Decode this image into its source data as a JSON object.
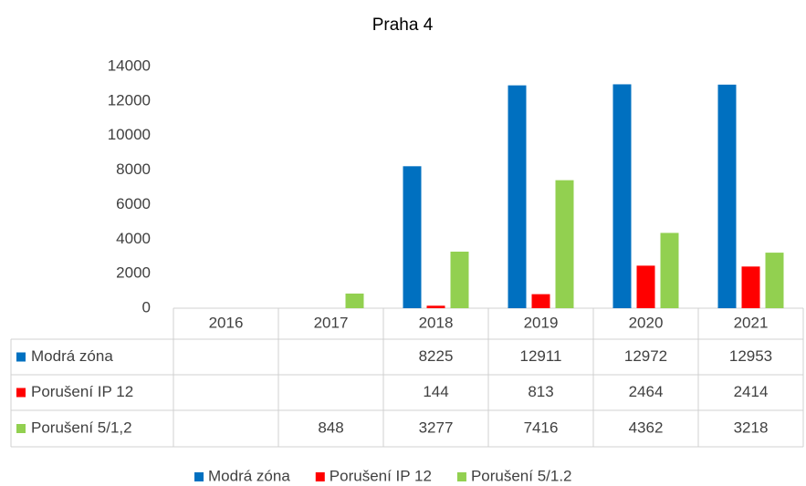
{
  "chart_data": {
    "type": "bar",
    "title": "Praha 4",
    "categories": [
      "2016",
      "2017",
      "2018",
      "2019",
      "2020",
      "2021"
    ],
    "series": [
      {
        "name": "Modrá zóna",
        "color": "#0070c0",
        "values": [
          null,
          null,
          8225,
          12911,
          12972,
          12953
        ]
      },
      {
        "name": "Porušení IP 12",
        "color": "#ff0000",
        "values": [
          null,
          null,
          144,
          813,
          2464,
          2414
        ]
      },
      {
        "name": "Porušení 5/1.2",
        "color": "#92d050",
        "values": [
          null,
          848,
          3277,
          7416,
          4362,
          3218
        ]
      }
    ],
    "data_table_labels": [
      "Modrá zóna",
      "Porušení IP 12",
      "Porušení 5/1,2"
    ],
    "ylim": [
      0,
      14000
    ],
    "yticks": [
      0,
      2000,
      4000,
      6000,
      8000,
      10000,
      12000,
      14000
    ],
    "grid": false,
    "legend": "bottom"
  }
}
